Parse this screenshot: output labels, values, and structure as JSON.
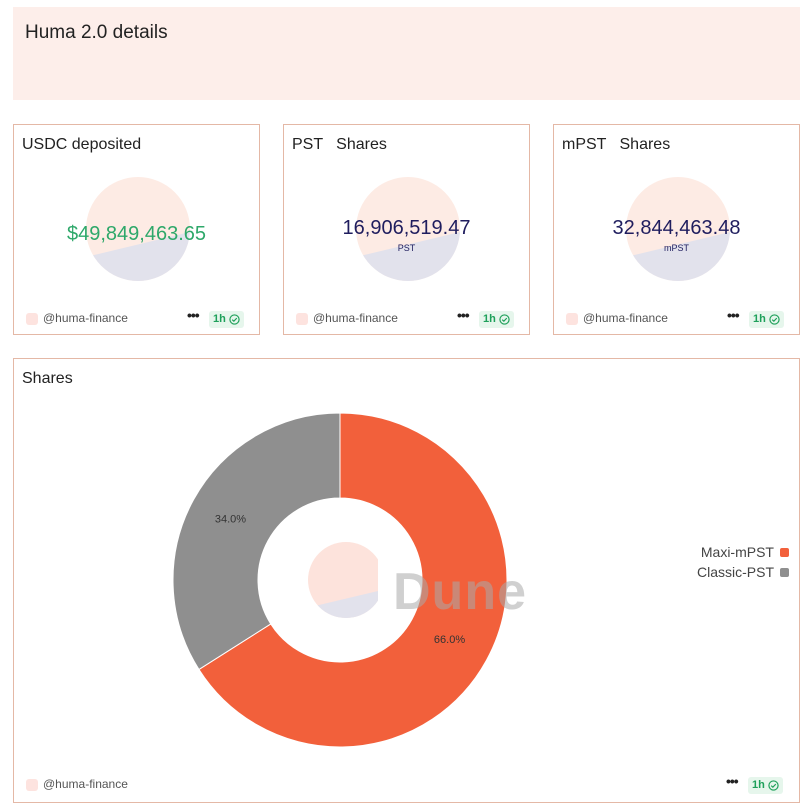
{
  "header": {
    "title": "Huma 2.0 details"
  },
  "counters": [
    {
      "title": "USDC deposited",
      "value": "$49,849,463.65",
      "sub": "",
      "color": "#2ea86a",
      "author": "@huma-finance",
      "badge": "1h"
    },
    {
      "title": "PST   Shares",
      "value": "16,906,519.47",
      "sub": "PST",
      "color": "#1f1d5e",
      "author": "@huma-finance",
      "badge": "1h"
    },
    {
      "title": "mPST   Shares",
      "value": "32,844,463.48",
      "sub": "mPST",
      "color": "#1f1d5e",
      "author": "@huma-finance",
      "badge": "1h"
    }
  ],
  "shares": {
    "title": "Shares",
    "author": "@huma-finance",
    "badge": "1h",
    "watermark": "Dune"
  },
  "chart_data": {
    "type": "pie",
    "categories": [
      "Maxi-mPST",
      "Classic-PST"
    ],
    "values": [
      66.0,
      34.0
    ],
    "labels": [
      "66.0%",
      "34.0%"
    ],
    "colors": [
      "#f2603b",
      "#8f8f8f"
    ],
    "donut": true,
    "title": "Shares",
    "legend": "right"
  }
}
